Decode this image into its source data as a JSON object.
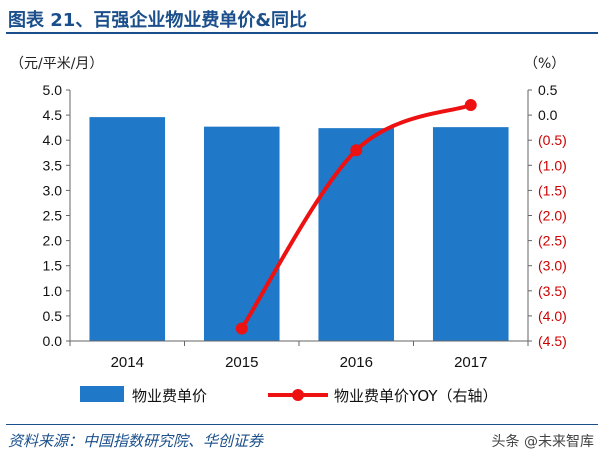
{
  "figure": {
    "title": "图表 21、百强企业物业费单价&同比",
    "source": "资料来源：中国指数研究院、华创证券",
    "watermark": "头条 @未来智库"
  },
  "chart_data": {
    "type": "bar",
    "categories": [
      "2014",
      "2015",
      "2016",
      "2017"
    ],
    "series": [
      {
        "name": "物业费单价",
        "type": "bar",
        "axis": "left",
        "values": [
          4.46,
          4.27,
          4.24,
          4.26
        ],
        "color": "#1f78c8"
      },
      {
        "name": "物业费单价YOY（右轴）",
        "type": "line",
        "axis": "right",
        "values": [
          null,
          -4.25,
          -0.7,
          0.2
        ],
        "color": "#ee1111"
      }
    ],
    "y_left": {
      "unit_label": "（元/平米/月）",
      "min": 0,
      "max": 5.0,
      "ticks": [
        "0.0",
        "0.5",
        "1.0",
        "1.5",
        "2.0",
        "2.5",
        "3.0",
        "3.5",
        "4.0",
        "4.5",
        "5.0"
      ]
    },
    "y_right": {
      "unit_label": "（%）",
      "min": -4.5,
      "max": 0.5,
      "ticks": [
        "(4.5)",
        "(4.0)",
        "(3.5)",
        "(3.0)",
        "(2.5)",
        "(2.0)",
        "(1.5)",
        "(1.0)",
        "(0.5)",
        "0.0",
        "0.5"
      ]
    },
    "legend_position": "bottom",
    "grid": false
  }
}
